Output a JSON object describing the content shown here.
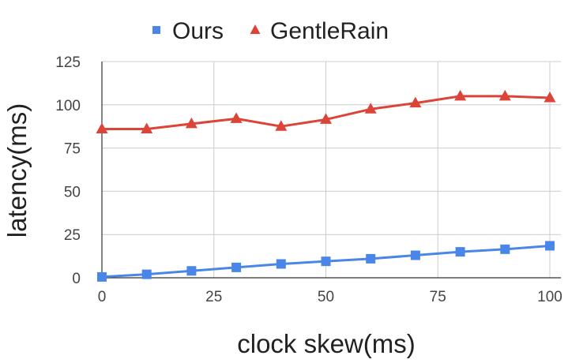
{
  "chart_data": {
    "type": "line",
    "title": "",
    "xlabel": "clock skew(ms)",
    "ylabel": "latency(ms)",
    "x": [
      0,
      10,
      20,
      30,
      40,
      50,
      60,
      70,
      80,
      90,
      100
    ],
    "xlim": [
      0,
      100
    ],
    "ylim": [
      0,
      125
    ],
    "xticks": [
      "0",
      "25",
      "50",
      "75",
      "100"
    ],
    "yticks": [
      "0",
      "25",
      "50",
      "75",
      "100",
      "125"
    ],
    "grid": "vertical",
    "legend_position": "top",
    "series": [
      {
        "name": "Ours",
        "marker": "square",
        "color": "#4a86e8",
        "values": [
          0.5,
          2,
          4,
          6,
          8,
          9.5,
          11,
          13,
          15,
          16.5,
          18.5
        ]
      },
      {
        "name": "GentleRain",
        "marker": "triangle",
        "color": "#db4437",
        "values": [
          86,
          86,
          89,
          92,
          87.5,
          91.5,
          97.5,
          101,
          105,
          105,
          104
        ]
      }
    ]
  }
}
